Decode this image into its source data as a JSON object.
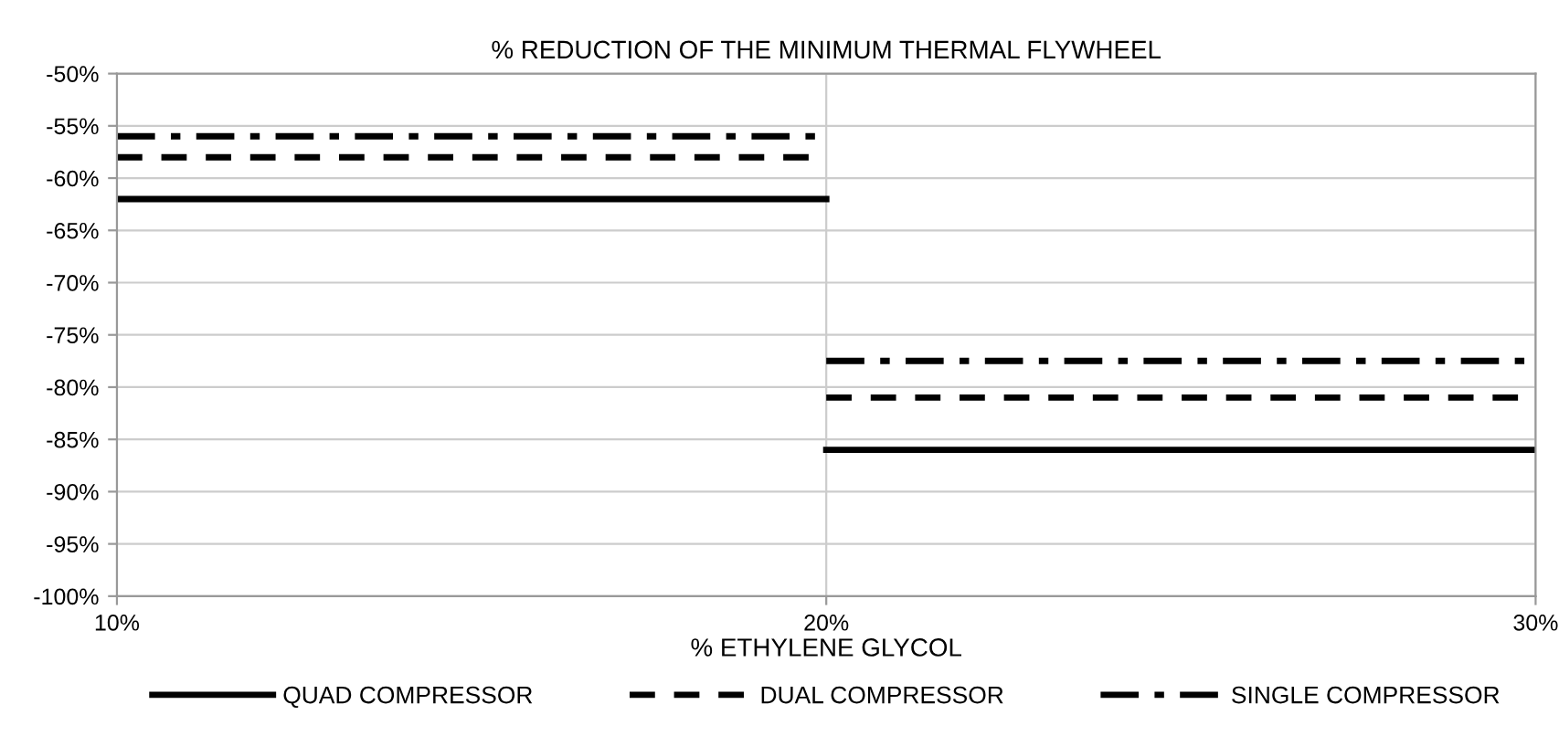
{
  "chart_data": {
    "type": "line",
    "title": "% REDUCTION OF THE MINIMUM THERMAL FLYWHEEL",
    "xlabel": "% ETHYLENE GLYCOL",
    "x": [
      10,
      20,
      20,
      30
    ],
    "series": [
      {
        "name": "QUAD COMPRESSOR",
        "color": "#000000",
        "line_style": "solid",
        "values": [
          -62,
          -62,
          -86,
          -86
        ]
      },
      {
        "name": "DUAL COMPRESSOR",
        "color": "#000000",
        "line_style": "dashed",
        "values": [
          -58,
          -58,
          -81,
          -81
        ]
      },
      {
        "name": "SINGLE COMPRESSOR",
        "color": "#000000",
        "line_style": "dashdot",
        "values": [
          -56,
          -56,
          -77.5,
          -77.5
        ]
      }
    ],
    "xlim": [
      10,
      30
    ],
    "xticks": [
      {
        "value": 10,
        "label": "10%"
      },
      {
        "value": 20,
        "label": "20%"
      },
      {
        "value": 30,
        "label": "30%"
      }
    ],
    "ylim": [
      -100,
      -50
    ],
    "yticks": [
      {
        "value": -100,
        "label": "-100%"
      },
      {
        "value": -95,
        "label": "-95%"
      },
      {
        "value": -90,
        "label": "-90%"
      },
      {
        "value": -85,
        "label": "-85%"
      },
      {
        "value": -80,
        "label": "-80%"
      },
      {
        "value": -75,
        "label": "-75%"
      },
      {
        "value": -70,
        "label": "-70%"
      },
      {
        "value": -65,
        "label": "-65%"
      },
      {
        "value": -60,
        "label": "-60%"
      },
      {
        "value": -55,
        "label": "-55%"
      },
      {
        "value": -50,
        "label": "-50%"
      }
    ],
    "grid": true,
    "legend": "bottom",
    "marker": "none"
  }
}
